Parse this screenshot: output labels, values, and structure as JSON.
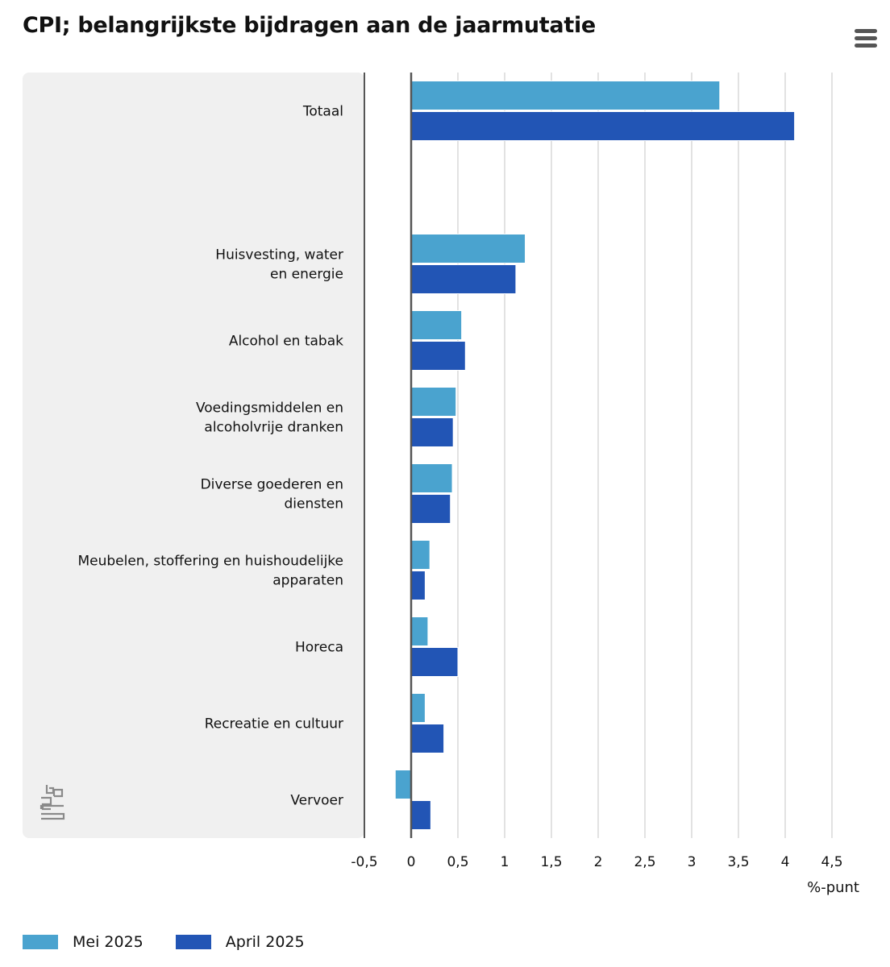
{
  "title": "CPI; belangrijkste bijdragen aan de jaarmutatie",
  "menu_icon": "hamburger-menu-icon",
  "logo_icon": "cbs-logo-icon",
  "colors": {
    "mei": "#4aa3cf",
    "april": "#2255b5",
    "label_panel": "#f0f0f0",
    "grid": "#cfcfcf",
    "axis": "#555555"
  },
  "chart_data": {
    "type": "bar",
    "orientation": "horizontal",
    "title": "CPI; belangrijkste bijdragen aan de jaarmutatie",
    "xlabel": "%-punt",
    "xlim": [
      -0.5,
      4.5
    ],
    "xticks": [
      -0.5,
      0,
      0.5,
      1,
      1.5,
      2,
      2.5,
      3,
      3.5,
      4,
      4.5
    ],
    "xtick_labels": [
      "-0,5",
      "0",
      "0,5",
      "1",
      "1,5",
      "2",
      "2,5",
      "3",
      "3,5",
      "4",
      "4,5"
    ],
    "grid": true,
    "legend_position": "bottom-left",
    "categories": [
      [
        "Totaal"
      ],
      [
        ""
      ],
      [
        "Huisvesting, water",
        "en energie"
      ],
      [
        "Alcohol en tabak"
      ],
      [
        "Voedingsmiddelen en",
        "alcoholvrije dranken"
      ],
      [
        "Diverse goederen en",
        "diensten"
      ],
      [
        "Meubelen, stoffering en huishoudelijke",
        "apparaten"
      ],
      [
        "Horeca"
      ],
      [
        "Recreatie en cultuur"
      ],
      [
        "Vervoer"
      ]
    ],
    "series": [
      {
        "name": "Mei 2025",
        "values": [
          3.3,
          null,
          1.22,
          0.54,
          0.48,
          0.44,
          0.2,
          0.18,
          0.15,
          -0.17
        ]
      },
      {
        "name": "April 2025",
        "values": [
          4.1,
          null,
          1.12,
          0.58,
          0.45,
          0.42,
          0.15,
          0.5,
          0.35,
          0.21
        ]
      }
    ]
  },
  "legend": {
    "items": [
      {
        "label": "Mei 2025"
      },
      {
        "label": "April 2025"
      }
    ]
  }
}
